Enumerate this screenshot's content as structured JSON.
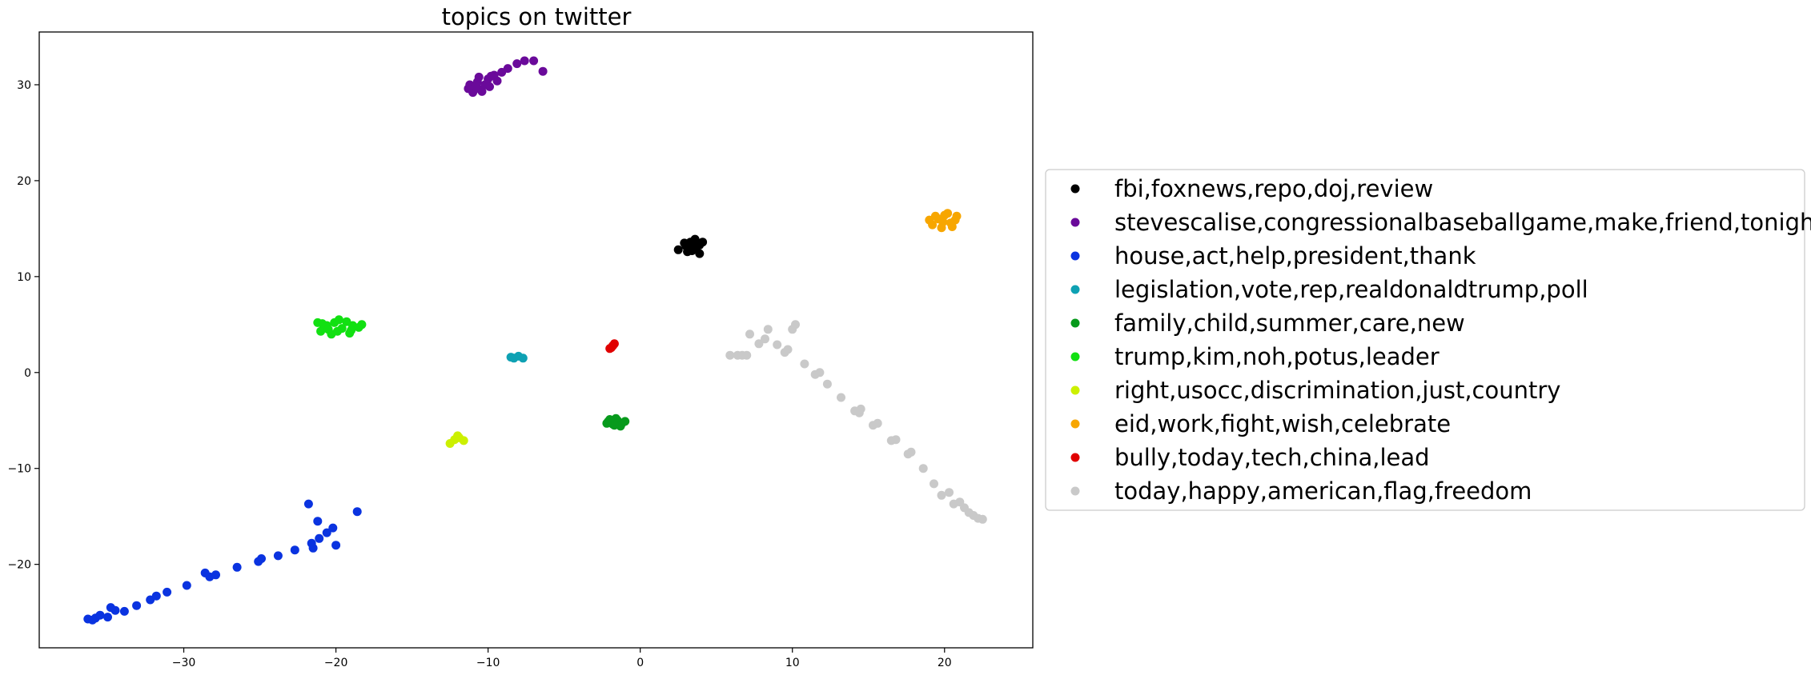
{
  "chart_data": {
    "type": "scatter",
    "title": "topics on twitter",
    "xlabel": "",
    "ylabel": "",
    "xlim": [
      -39.5,
      25.8
    ],
    "ylim": [
      -28.7,
      35.5
    ],
    "xticks": [
      -30,
      -20,
      -10,
      0,
      10,
      20
    ],
    "yticks": [
      -20,
      -10,
      0,
      10,
      20,
      30
    ],
    "x_tick_labels": [
      "−30",
      "−20",
      "−10",
      "0",
      "10",
      "20"
    ],
    "y_tick_labels": [
      "−20",
      "−10",
      "0",
      "10",
      "20",
      "30"
    ],
    "grid": false,
    "legend_position": "right",
    "series": [
      {
        "name": "fbi,foxnews,repo,doj,review",
        "color": "#000000",
        "points": [
          [
            2.5,
            12.8
          ],
          [
            3.0,
            13.2
          ],
          [
            3.3,
            13.6
          ],
          [
            3.6,
            13.9
          ],
          [
            3.9,
            13.3
          ],
          [
            3.4,
            12.7
          ],
          [
            3.9,
            12.4
          ],
          [
            3.1,
            12.6
          ],
          [
            3.7,
            13.1
          ],
          [
            2.9,
            13.5
          ],
          [
            4.1,
            13.6
          ],
          [
            3.5,
            13.0
          ]
        ]
      },
      {
        "name": "stevescalise,congressionalbaseballgame,make,friend,tonight",
        "color": "#6a0a9a",
        "points": [
          [
            -11.0,
            29.2
          ],
          [
            -10.5,
            29.5
          ],
          [
            -11.2,
            30.0
          ],
          [
            -10.7,
            30.3
          ],
          [
            -10.2,
            30.0
          ],
          [
            -10.0,
            30.6
          ],
          [
            -9.6,
            31.0
          ],
          [
            -10.4,
            29.3
          ],
          [
            -11.3,
            29.6
          ],
          [
            -9.9,
            29.8
          ],
          [
            -9.4,
            30.4
          ],
          [
            -9.1,
            31.3
          ],
          [
            -8.7,
            31.7
          ],
          [
            -8.1,
            32.2
          ],
          [
            -7.6,
            32.5
          ],
          [
            -7.0,
            32.5
          ],
          [
            -6.4,
            31.4
          ],
          [
            -10.8,
            29.9
          ],
          [
            -9.8,
            30.9
          ],
          [
            -10.6,
            30.8
          ]
        ]
      },
      {
        "name": "house,act,help,president,thank",
        "color": "#0a33e0",
        "points": [
          [
            -36.3,
            -25.7
          ],
          [
            -35.8,
            -25.6
          ],
          [
            -35.5,
            -25.3
          ],
          [
            -35.0,
            -25.5
          ],
          [
            -34.5,
            -24.8
          ],
          [
            -33.9,
            -24.9
          ],
          [
            -33.1,
            -24.3
          ],
          [
            -32.2,
            -23.7
          ],
          [
            -31.1,
            -22.9
          ],
          [
            -29.8,
            -22.2
          ],
          [
            -28.3,
            -21.3
          ],
          [
            -27.9,
            -21.1
          ],
          [
            -26.5,
            -20.3
          ],
          [
            -25.1,
            -19.7
          ],
          [
            -23.8,
            -19.1
          ],
          [
            -22.7,
            -18.5
          ],
          [
            -21.6,
            -17.8
          ],
          [
            -21.1,
            -17.3
          ],
          [
            -20.6,
            -16.7
          ],
          [
            -20.2,
            -16.2
          ],
          [
            -21.5,
            -18.3
          ],
          [
            -20.0,
            -18.0
          ],
          [
            -21.2,
            -15.5
          ],
          [
            -21.8,
            -13.7
          ],
          [
            -18.6,
            -14.5
          ],
          [
            -34.8,
            -24.5
          ],
          [
            -31.8,
            -23.3
          ],
          [
            -28.6,
            -20.9
          ],
          [
            -24.9,
            -19.4
          ],
          [
            -36.0,
            -25.8
          ]
        ]
      },
      {
        "name": "legislation,vote,rep,realdonaldtrump,poll",
        "color": "#0ea1b3",
        "points": [
          [
            -8.3,
            1.5
          ],
          [
            -8.0,
            1.7
          ],
          [
            -7.7,
            1.5
          ],
          [
            -8.5,
            1.6
          ]
        ]
      },
      {
        "name": "family,child,summer,care,new",
        "color": "#079a1c",
        "points": [
          [
            -2.1,
            -5.1
          ],
          [
            -1.8,
            -5.4
          ],
          [
            -1.5,
            -5.0
          ],
          [
            -1.2,
            -5.3
          ],
          [
            -1.6,
            -4.8
          ],
          [
            -2.0,
            -4.9
          ],
          [
            -1.3,
            -5.6
          ],
          [
            -1.0,
            -5.1
          ],
          [
            -1.7,
            -5.5
          ],
          [
            -2.2,
            -5.3
          ]
        ]
      },
      {
        "name": "trump,kim,noh,potus,leader",
        "color": "#12e012",
        "points": [
          [
            -21.0,
            4.3
          ],
          [
            -20.6,
            4.9
          ],
          [
            -20.1,
            5.2
          ],
          [
            -19.6,
            4.6
          ],
          [
            -19.1,
            4.1
          ],
          [
            -20.3,
            4.0
          ],
          [
            -19.8,
            5.5
          ],
          [
            -20.9,
            5.1
          ],
          [
            -18.9,
            4.9
          ],
          [
            -19.3,
            5.3
          ],
          [
            -20.5,
            4.5
          ],
          [
            -19.0,
            4.4
          ],
          [
            -18.5,
            4.7
          ],
          [
            -18.3,
            5.0
          ],
          [
            -21.2,
            5.2
          ],
          [
            -19.9,
            4.3
          ]
        ]
      },
      {
        "name": "right,usocc,discrimination,just,country",
        "color": "#ccf000",
        "points": [
          [
            -12.5,
            -7.4
          ],
          [
            -12.2,
            -7.0
          ],
          [
            -11.9,
            -6.8
          ],
          [
            -11.6,
            -7.1
          ],
          [
            -12.0,
            -6.6
          ]
        ]
      },
      {
        "name": "eid,work,fight,wish,celebrate",
        "color": "#f7a600",
        "points": [
          [
            19.2,
            15.4
          ],
          [
            19.6,
            16.0
          ],
          [
            20.0,
            16.4
          ],
          [
            20.4,
            15.6
          ],
          [
            20.7,
            15.9
          ],
          [
            19.8,
            15.1
          ],
          [
            20.2,
            16.6
          ],
          [
            19.4,
            16.3
          ],
          [
            20.5,
            15.2
          ],
          [
            19.0,
            15.9
          ],
          [
            20.8,
            16.3
          ],
          [
            19.9,
            15.7
          ]
        ]
      },
      {
        "name": "bully,today,tech,china,lead",
        "color": "#e00000",
        "points": [
          [
            -2.0,
            2.5
          ],
          [
            -1.8,
            2.8
          ],
          [
            -1.7,
            3.0
          ],
          [
            -1.9,
            2.6
          ]
        ]
      },
      {
        "name": "today,happy,american,flag,freedom",
        "color": "#c9c9c9",
        "points": [
          [
            5.9,
            1.8
          ],
          [
            6.4,
            1.8
          ],
          [
            6.7,
            1.8
          ],
          [
            7.0,
            1.8
          ],
          [
            7.2,
            4.0
          ],
          [
            7.8,
            3.0
          ],
          [
            8.2,
            3.5
          ],
          [
            8.4,
            4.5
          ],
          [
            9.0,
            2.9
          ],
          [
            9.5,
            2.1
          ],
          [
            9.7,
            2.4
          ],
          [
            10.0,
            4.5
          ],
          [
            10.2,
            5.0
          ],
          [
            10.8,
            0.9
          ],
          [
            11.5,
            -0.2
          ],
          [
            11.8,
            0.0
          ],
          [
            12.3,
            -1.2
          ],
          [
            13.2,
            -2.6
          ],
          [
            14.1,
            -4.0
          ],
          [
            14.4,
            -4.2
          ],
          [
            14.5,
            -3.8
          ],
          [
            15.3,
            -5.5
          ],
          [
            15.6,
            -5.3
          ],
          [
            16.5,
            -7.1
          ],
          [
            16.8,
            -7.0
          ],
          [
            17.6,
            -8.5
          ],
          [
            17.8,
            -8.3
          ],
          [
            18.6,
            -10.0
          ],
          [
            19.3,
            -11.6
          ],
          [
            19.8,
            -12.8
          ],
          [
            20.3,
            -12.5
          ],
          [
            20.6,
            -13.7
          ],
          [
            21.0,
            -13.5
          ],
          [
            21.3,
            -14.1
          ],
          [
            21.6,
            -14.6
          ],
          [
            21.9,
            -14.9
          ],
          [
            22.2,
            -15.2
          ],
          [
            22.5,
            -15.3
          ]
        ]
      }
    ]
  }
}
